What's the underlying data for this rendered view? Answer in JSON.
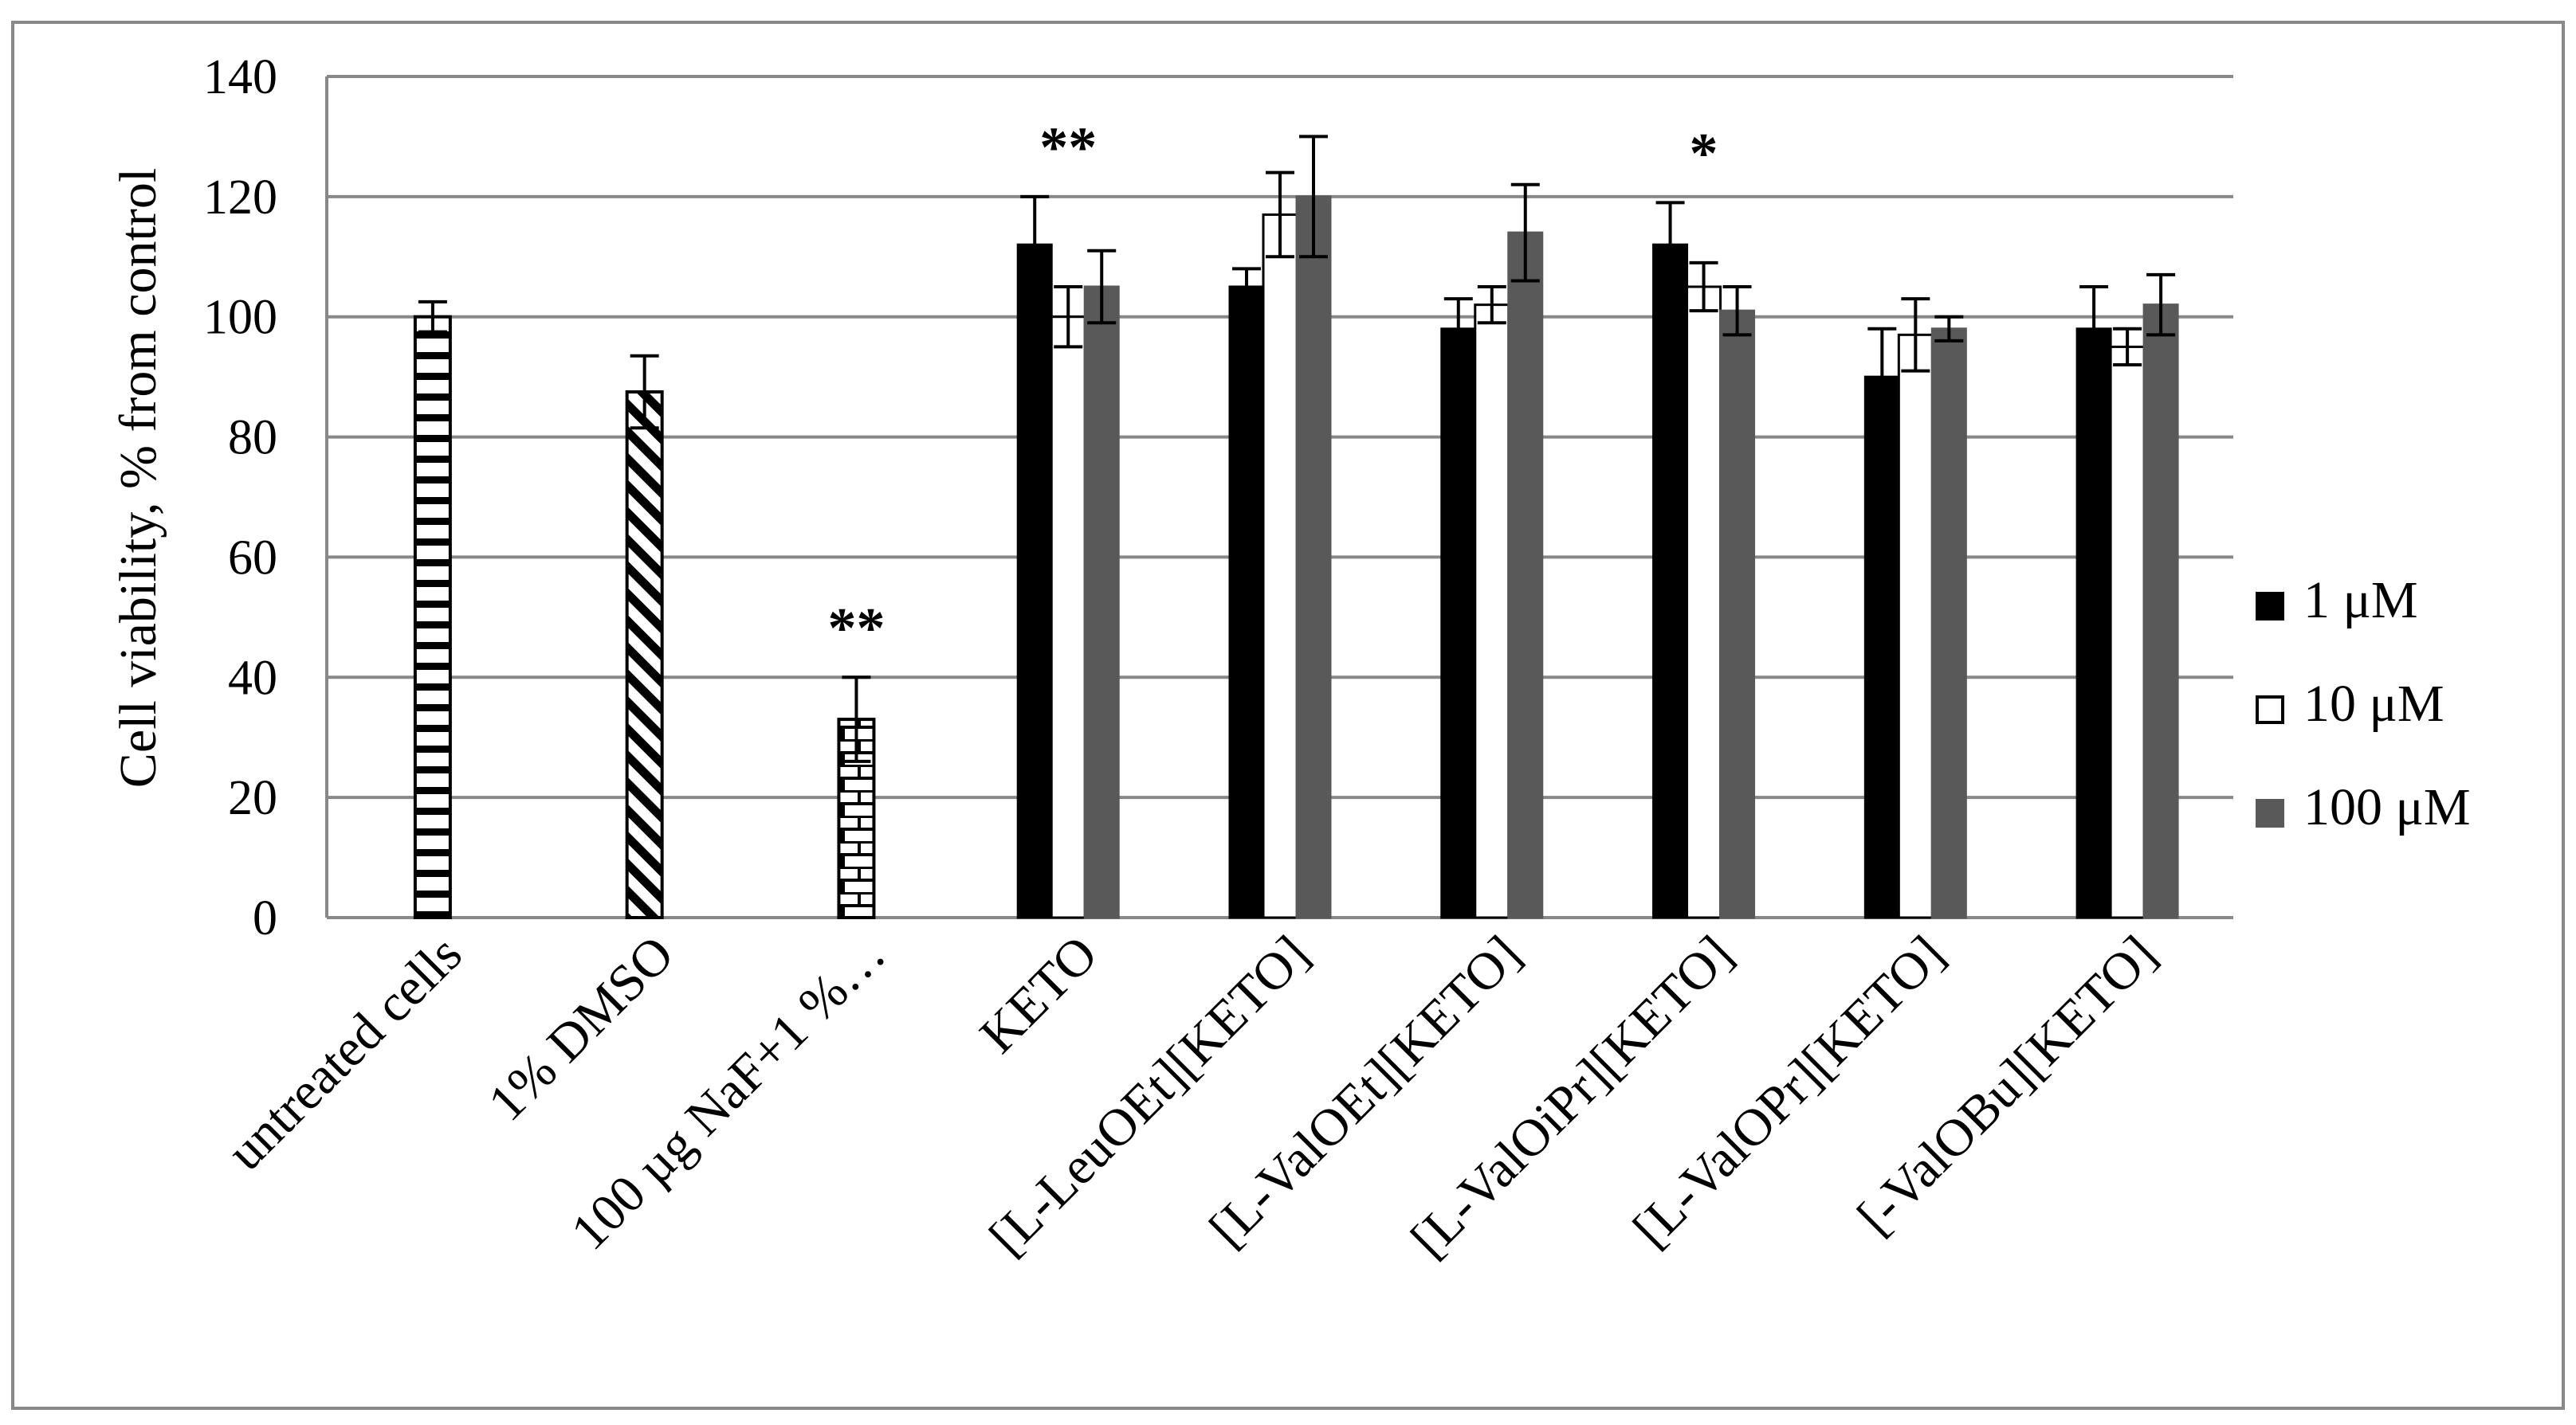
{
  "chart_data": {
    "type": "bar",
    "ylabel": "Cell viability, % from control",
    "ylim": [
      0,
      140
    ],
    "yticks": [
      0,
      20,
      40,
      60,
      80,
      100,
      120,
      140
    ],
    "grid": true,
    "legend_position": "right",
    "control_bars": [
      {
        "category": "untreated cells",
        "value": 100,
        "error": 2.5,
        "pattern": "horizontal-stripes"
      },
      {
        "category": "1% DMSO",
        "value": 87.5,
        "error": 6,
        "pattern": "diagonal-stripes"
      },
      {
        "category": "100 µg NaF+1 %…",
        "value": 33,
        "error": 7,
        "pattern": "brick",
        "significance": "**"
      }
    ],
    "categories": [
      "KETO",
      "[L-LeuOEt][KETO]",
      "[L-ValOEt][KETO]",
      "[L-ValOiPr][KETO]",
      "[L-ValOPr][KETO]",
      "[-ValOBu][KETO]"
    ],
    "series": [
      {
        "name": "1 μM",
        "color": "#000000",
        "values": [
          112,
          105,
          98,
          112,
          90,
          98
        ],
        "errors": [
          8,
          3,
          5,
          7,
          8,
          7
        ]
      },
      {
        "name": "10 μM",
        "color": "#ffffff",
        "values": [
          100,
          117,
          102,
          105,
          97,
          95
        ],
        "errors": [
          5,
          7,
          3,
          4,
          6,
          3
        ]
      },
      {
        "name": "100 μM",
        "color": "#595959",
        "values": [
          105,
          120,
          114,
          101,
          98,
          102
        ],
        "errors": [
          6,
          10,
          8,
          4,
          2,
          5
        ]
      }
    ],
    "annotations": [
      {
        "text": "**",
        "category": "KETO"
      },
      {
        "text": "*",
        "category": "[L-ValOiPr][KETO]"
      }
    ]
  }
}
